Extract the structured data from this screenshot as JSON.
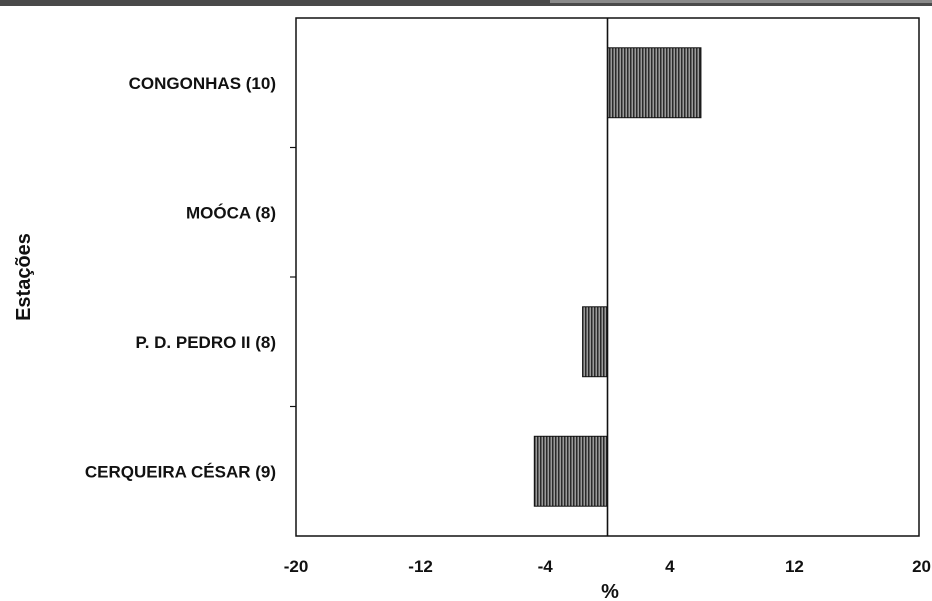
{
  "chart_data": {
    "type": "bar",
    "orientation": "horizontal",
    "title": "",
    "xlabel": "%",
    "ylabel": "Estações",
    "xlim": [
      -20,
      20
    ],
    "xticks": [
      "-20",
      "-12",
      "-4",
      "4",
      "12",
      "20"
    ],
    "categories": [
      "CONGONHAS (10)",
      "MOÓCA (8)",
      "P. D. PEDRO II (8)",
      "CERQUEIRA CÉSAR (9)"
    ],
    "values": [
      6,
      0,
      -1.6,
      -4.7
    ],
    "bar_color": "#555555",
    "grid": false,
    "legend": "none"
  }
}
